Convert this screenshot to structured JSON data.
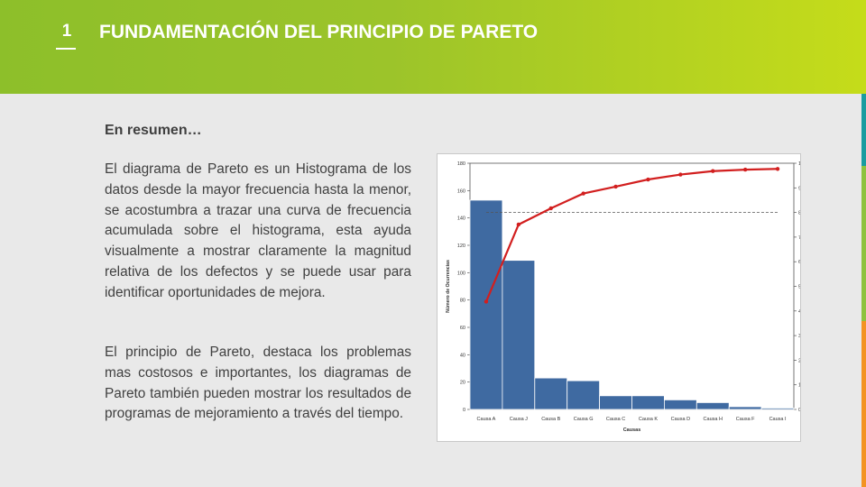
{
  "header": {
    "section_number": "1",
    "title": "FUNDAMENTACIÓN DEL PRINCIPIO DE PARETO"
  },
  "colors": {
    "header_start": "#8dbf2a",
    "header_end": "#c5dc1a",
    "bar": "#3f6aa1",
    "line": "#d21f1f",
    "text": "#404040"
  },
  "content": {
    "subtitle": "En resumen…",
    "paragraph1": "El diagrama de Pareto es un Histograma de los datos desde la mayor frecuencia hasta la menor, se acostumbra a trazar una curva de frecuencia acumulada sobre el histograma, esta ayuda visualmente a mostrar claramente la magnitud relativa de los defectos y se puede usar para identificar oportunidades de mejora.",
    "paragraph2": "El principio de Pareto, destaca los problemas mas costosos e importantes, los diagramas de Pareto también pueden mostrar los resultados de programas de mejoramiento a través del tiempo."
  },
  "chart_data": {
    "type": "bar",
    "categories": [
      "Causa A",
      "Causa J",
      "Causa B",
      "Causa G",
      "Causa C",
      "Causa K",
      "Causa D",
      "Causa H",
      "Causa F",
      "Causa I"
    ],
    "series": [
      {
        "type": "bar",
        "values": [
          153,
          109,
          23,
          21,
          10,
          10,
          7,
          5,
          2,
          1
        ]
      },
      {
        "type": "line",
        "axis": "right",
        "values": [
          43.8,
          75.1,
          81.7,
          87.7,
          90.5,
          93.4,
          95.4,
          96.8,
          97.4,
          97.7
        ]
      }
    ],
    "reference_line": 80,
    "xlabel": "Causas",
    "ylabel": "Número de Ocurrencias",
    "ylim": [
      0,
      180
    ],
    "yticks": [
      "0",
      "20",
      "40",
      "60",
      "80",
      "100",
      "120",
      "140",
      "160",
      "180"
    ],
    "y2lim": [
      0,
      100
    ],
    "y2ticks": [
      "0,00%",
      "10,00%",
      "20,00%",
      "30,00%",
      "40,00%",
      "50,00%",
      "60,00%",
      "70,00%",
      "80,00%",
      "90,00%",
      "100,00%"
    ],
    "grid": false,
    "legend": "none"
  }
}
